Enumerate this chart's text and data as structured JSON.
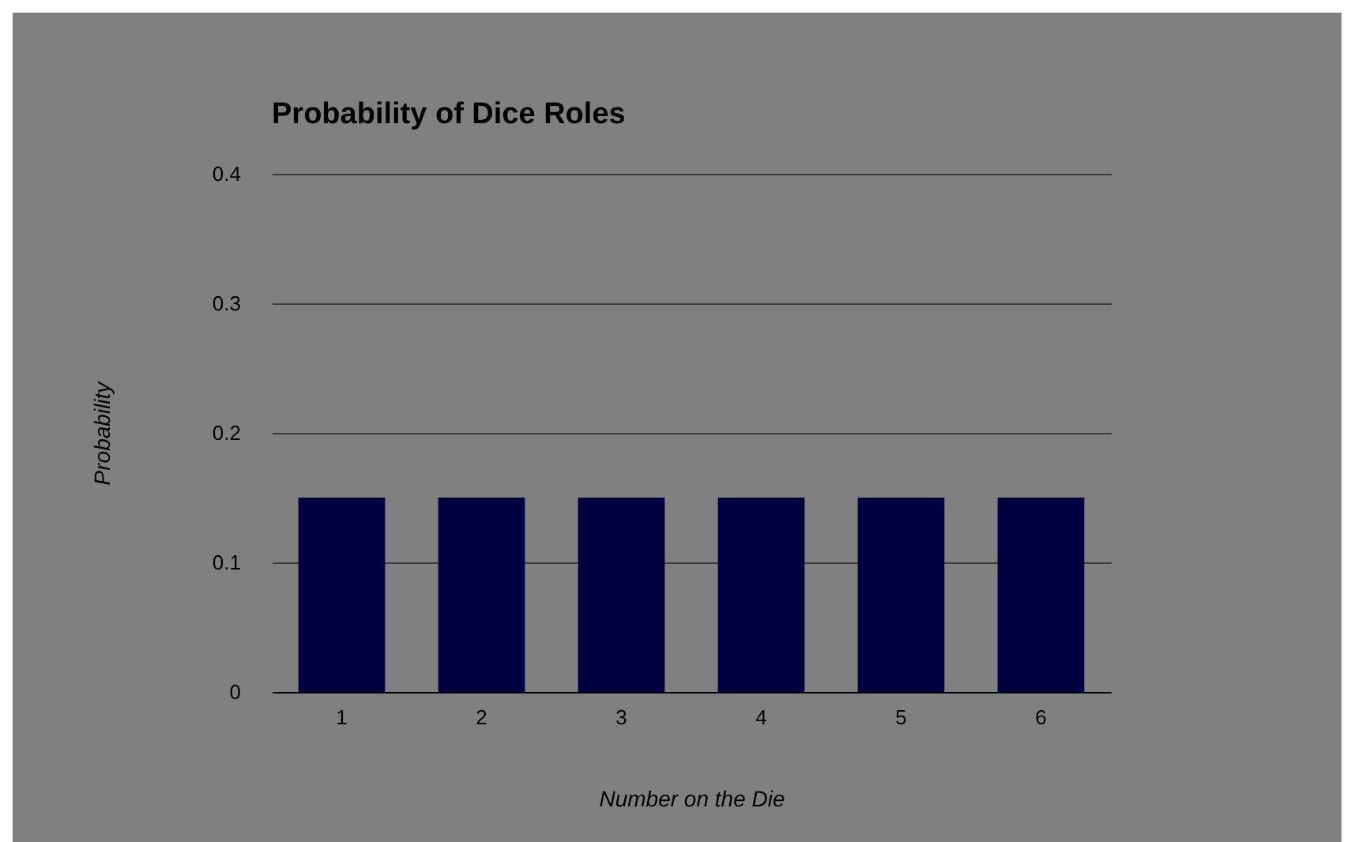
{
  "chart_data": {
    "type": "bar",
    "title": "Probability of Dice Roles",
    "xlabel": "Number on the Die",
    "ylabel": "Probability",
    "categories": [
      "1",
      "2",
      "3",
      "4",
      "5",
      "6"
    ],
    "values": [
      0.15,
      0.15,
      0.15,
      0.15,
      0.15,
      0.15
    ],
    "color": "#000040",
    "ylim": [
      0,
      0.4
    ],
    "yticks": [
      0,
      0.1,
      0.2,
      0.3,
      0.4
    ],
    "grid": "y"
  }
}
